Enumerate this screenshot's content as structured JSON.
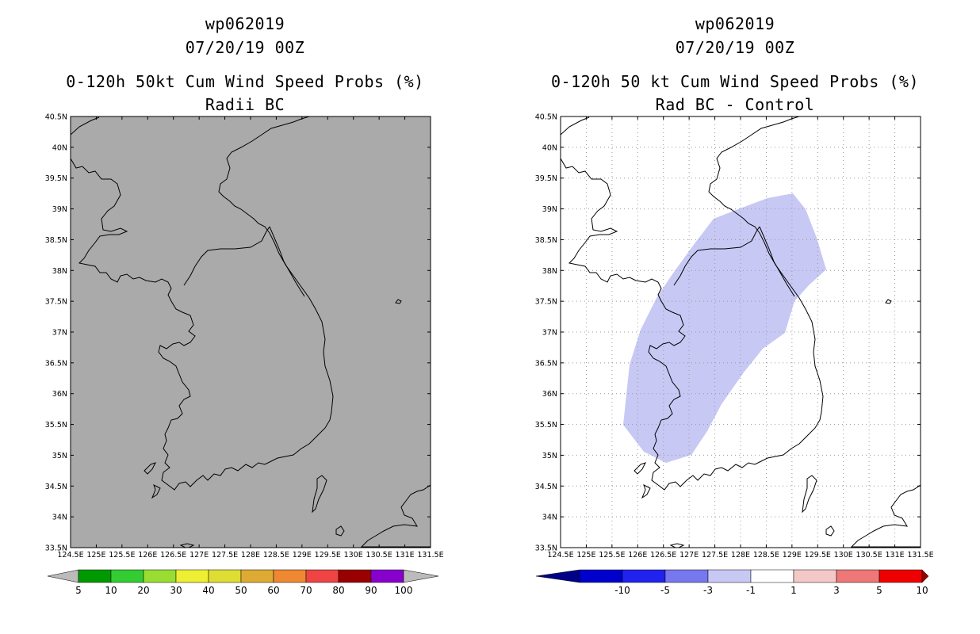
{
  "left": {
    "title_id": "wp062019",
    "title_date": "07/20/19 00Z",
    "title_product": "0-120h 50kt Cum Wind Speed Probs (%)",
    "title_sub": "Radii BC",
    "lat_labels": [
      "40.5N",
      "40N",
      "39.5N",
      "39N",
      "38.5N",
      "38N",
      "37.5N",
      "37N",
      "36.5N",
      "36N",
      "35.5N",
      "35N",
      "34.5N",
      "34N",
      "33.5N"
    ],
    "lon_labels": [
      "124.5E",
      "125E",
      "125.5E",
      "126E",
      "126.5E",
      "127E",
      "127.5E",
      "128E",
      "128.5E",
      "129E",
      "129.5E",
      "130E",
      "130.5E",
      "131E",
      "131.5E"
    ],
    "colorbar": {
      "labels": [
        "5",
        "10",
        "20",
        "30",
        "40",
        "50",
        "60",
        "70",
        "80",
        "90",
        "100"
      ],
      "colors": [
        "#009900",
        "#33cc33",
        "#99dd33",
        "#eeee33",
        "#dddd33",
        "#ddaa33",
        "#ee8833",
        "#ee4444",
        "#990000",
        "#8800cc"
      ]
    }
  },
  "right": {
    "title_id": "wp062019",
    "title_date": "07/20/19 00Z",
    "title_product": "0-120h 50 kt Cum Wind Speed Probs (%)",
    "title_sub": "Rad BC - Control",
    "lat_labels": [
      "40.5N",
      "40N",
      "39.5N",
      "39N",
      "38.5N",
      "38N",
      "37.5N",
      "37N",
      "36.5N",
      "36N",
      "35.5N",
      "35N",
      "34.5N",
      "34N",
      "33.5N"
    ],
    "lon_labels": [
      "124.5E",
      "125E",
      "125.5E",
      "126E",
      "126.5E",
      "127E",
      "127.5E",
      "128E",
      "128.5E",
      "129E",
      "129.5E",
      "130E",
      "130.5E",
      "131E",
      "131.5E"
    ],
    "colorbar": {
      "labels": [
        "-10",
        "-5",
        "-3",
        "-1",
        "1",
        "3",
        "5",
        "10"
      ],
      "colors": [
        "#0000cc",
        "#2222ee",
        "#7777ee",
        "#c8c8f5",
        "#ffffff",
        "#f5c8c8",
        "#ee7777",
        "#ee0000",
        "#990000"
      ]
    }
  }
}
